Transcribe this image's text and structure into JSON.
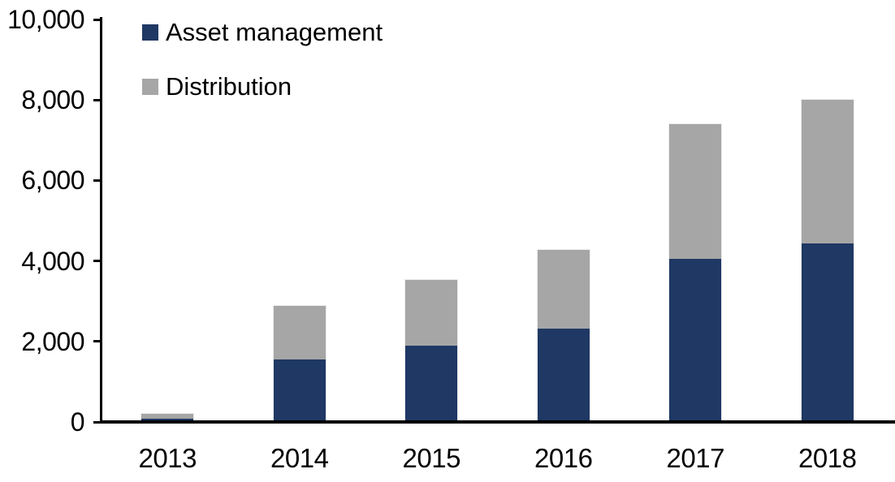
{
  "chart_data": {
    "type": "bar",
    "stacked": true,
    "title": "",
    "xlabel": "",
    "ylabel": "",
    "categories": [
      "2013",
      "2014",
      "2015",
      "2016",
      "2017",
      "2018"
    ],
    "series": [
      {
        "name": "Asset management",
        "color": "#1F3864",
        "values": [
          80,
          1550,
          1890,
          2320,
          4050,
          4430
        ]
      },
      {
        "name": "Distribution",
        "color": "#A6A6A6",
        "values": [
          120,
          1330,
          1630,
          1950,
          3350,
          3570
        ]
      }
    ],
    "totals": [
      200,
      2880,
      3520,
      4270,
      7400,
      8000
    ],
    "ylim": [
      0,
      10000
    ],
    "y_ticks": [
      0,
      2000,
      4000,
      6000,
      8000,
      10000
    ],
    "y_tick_labels": [
      "0",
      "2,000",
      "4,000",
      "6,000",
      "8,000",
      "10,000"
    ],
    "grid": false,
    "legend_position": "top-left-inside"
  },
  "colors": {
    "axis": "#000000",
    "text": "#000000",
    "background": "#ffffff",
    "bar_border": "#ececec"
  }
}
